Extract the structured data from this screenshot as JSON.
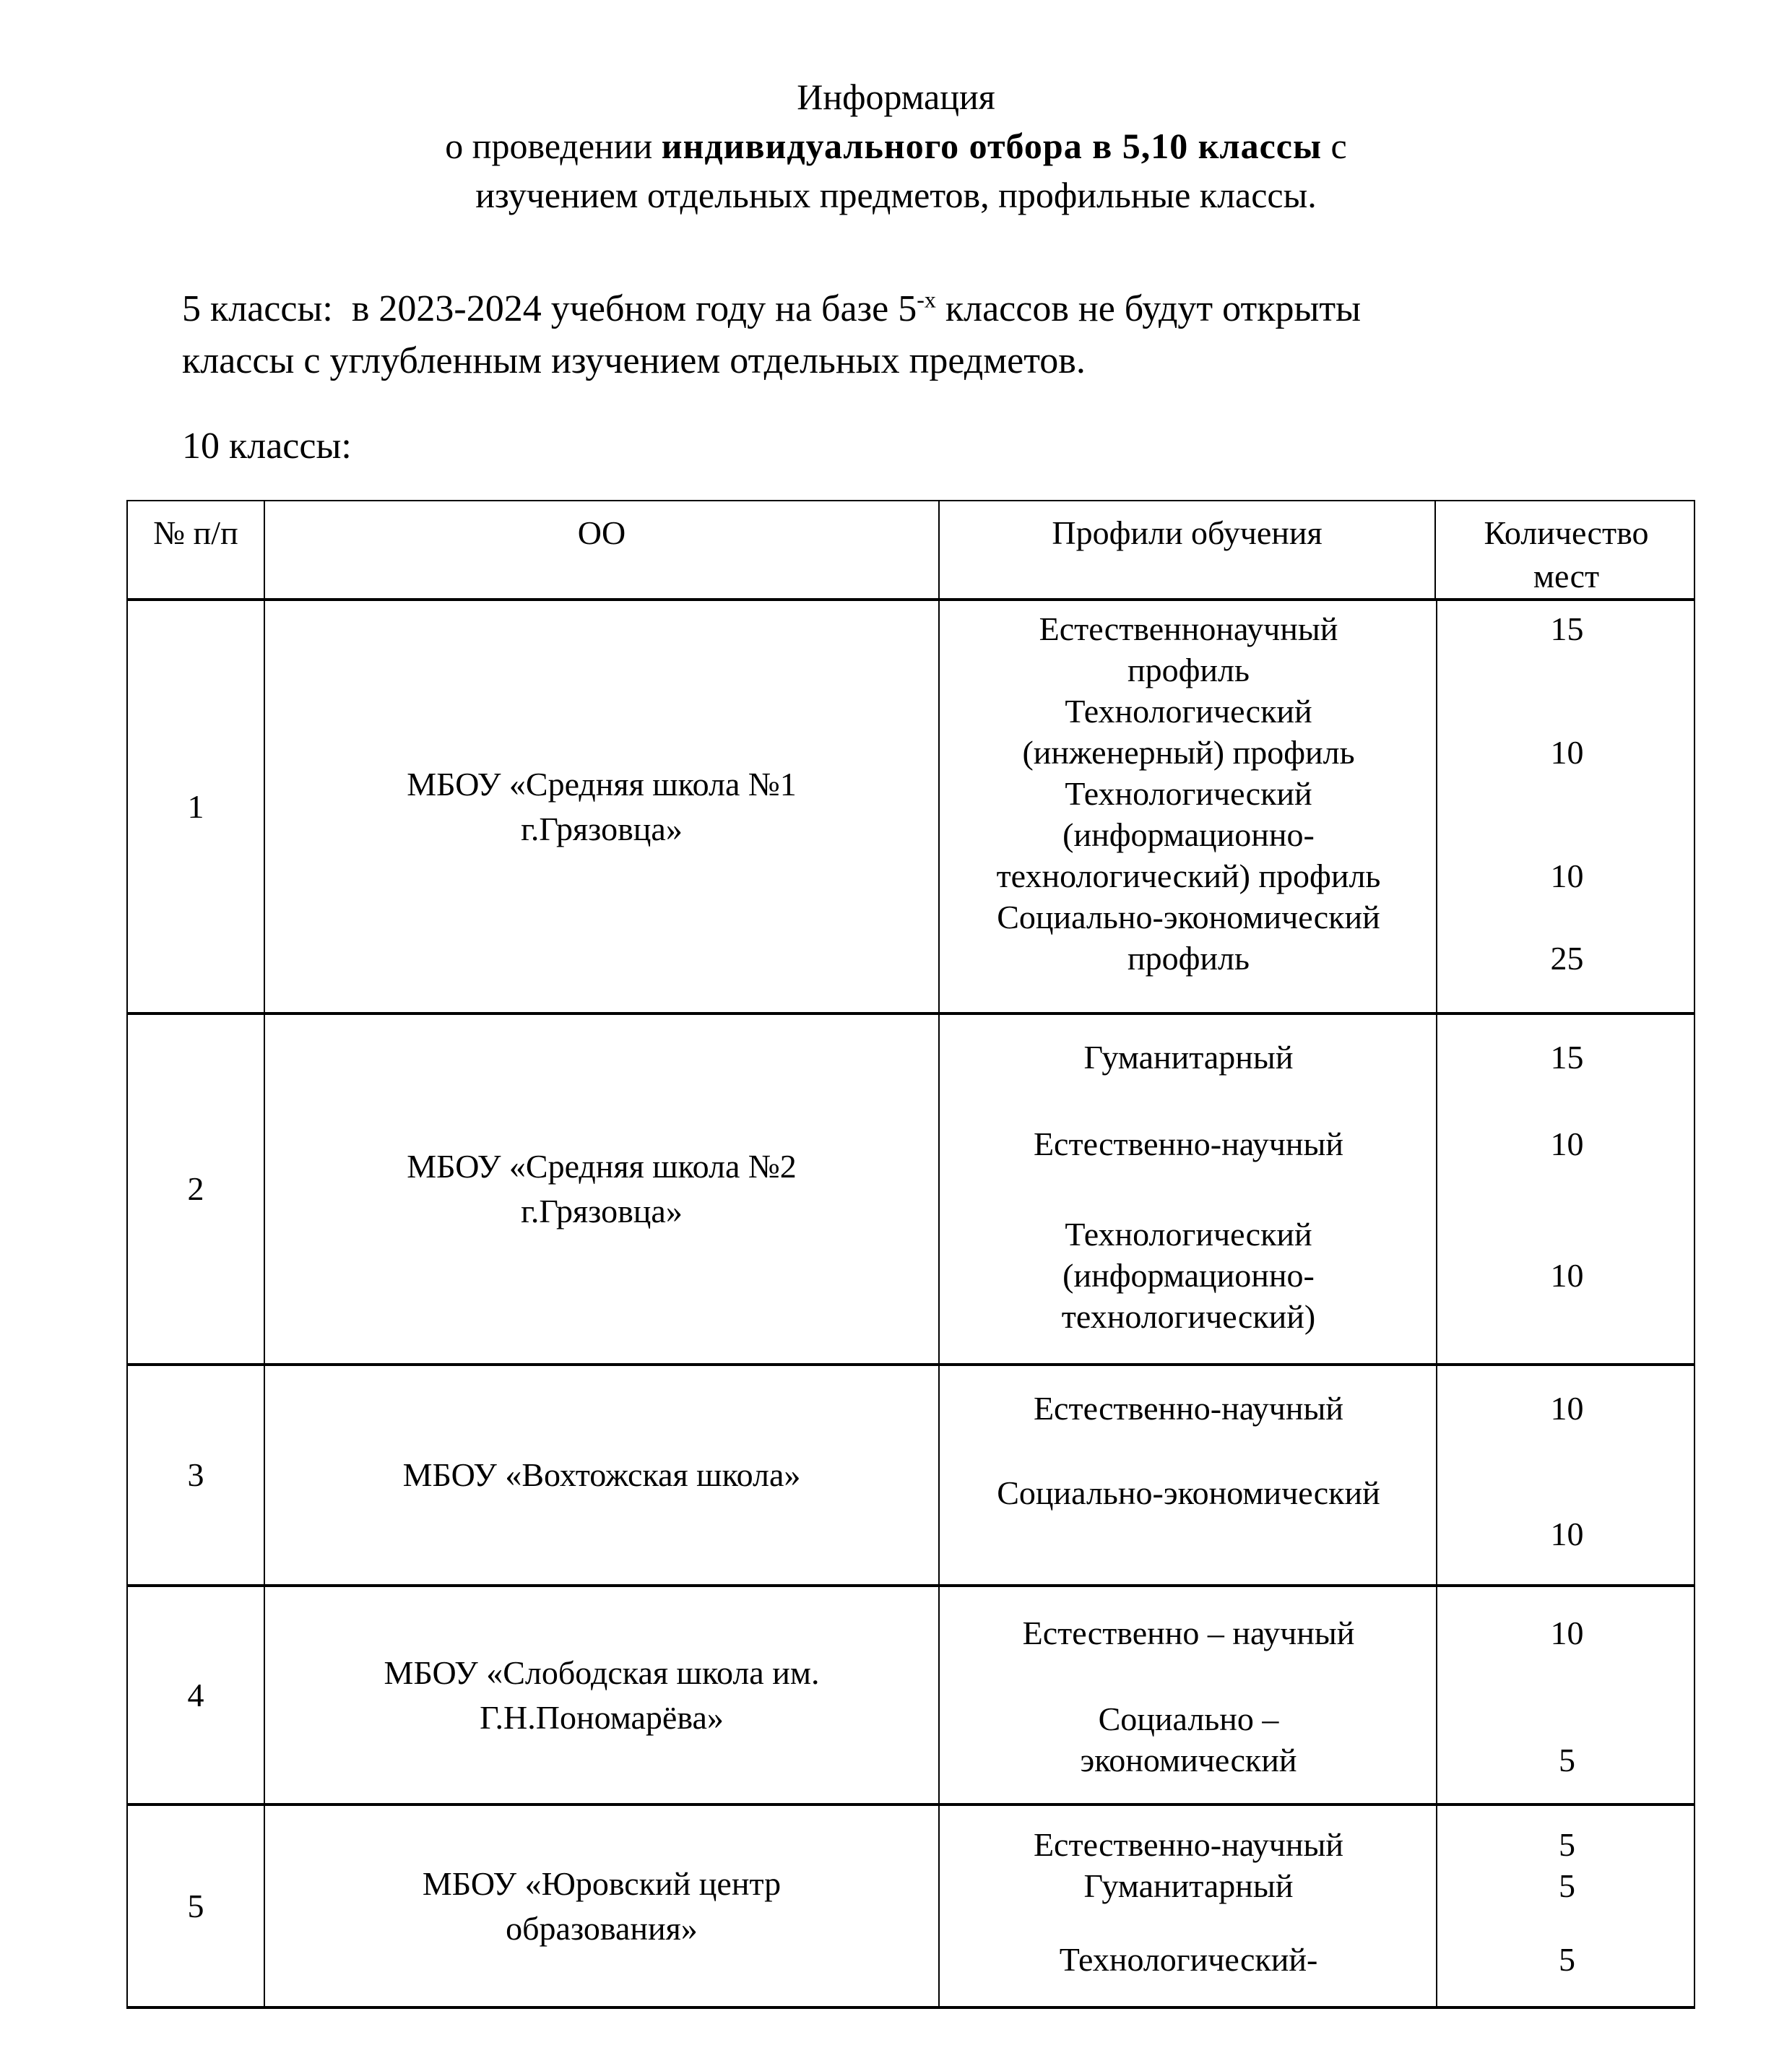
{
  "document": {
    "title": {
      "line1": "Информация",
      "line2_pre": "о проведении ",
      "line2_bold": "индивидуального отбора в 5,10 классы",
      "line2_post": " с",
      "line3": "изучением отдельных предметов, профильные классы."
    },
    "intro": {
      "line1_pre": "5 классы:  в 2023-2024 учебном году на базе 5",
      "line1_sup": "-х",
      "line1_post": " классов не будут открыты",
      "line2": "классы с углубленным изучением отдельных предметов."
    },
    "section_label": "10 классы:"
  },
  "table": {
    "headers": {
      "num": "№ п/п",
      "school": "ОО",
      "profiles": "Профили обучения",
      "places": "Количество\nмест"
    },
    "rows": [
      {
        "num": "1",
        "school": "МБОУ «Средняя школа №1\nг.Грязовца»",
        "entries": [
          {
            "profile": "Естественнонаучный\nпрофиль",
            "places": "15"
          },
          {
            "profile": "Технологический\n(инженерный) профиль",
            "places": "10"
          },
          {
            "profile": "Технологический\n(информационно-\nтехнологический) профиль",
            "places": "10"
          },
          {
            "profile": "Социально-экономический\nпрофиль",
            "places": "25"
          }
        ]
      },
      {
        "num": "2",
        "school": "МБОУ «Средняя школа №2\nг.Грязовца»",
        "entries": [
          {
            "profile": "Гуманитарный",
            "places": "15"
          },
          {
            "profile": "Естественно-научный",
            "places": "10"
          },
          {
            "profile": "Технологический\n(информационно-\nтехнологический)",
            "places": "10"
          }
        ]
      },
      {
        "num": "3",
        "school": "МБОУ «Вохтожская школа»",
        "entries": [
          {
            "profile": "Естественно-научный",
            "places": "10"
          },
          {
            "profile": "Социально-экономический",
            "places": "10"
          }
        ]
      },
      {
        "num": "4",
        "school": "МБОУ «Слободская школа им.\nГ.Н.Пономарёва»",
        "entries": [
          {
            "profile": "Естественно – научный",
            "places": "10"
          },
          {
            "profile": "Социально –\nэкономический",
            "places": "5"
          }
        ]
      },
      {
        "num": "5",
        "school": "МБОУ «Юровский центр\nобразования»",
        "entries": [
          {
            "profile": "Естественно-научный",
            "places": "5"
          },
          {
            "profile": "Гуманитарный",
            "places": "5"
          },
          {
            "profile": "Технологический-",
            "places": "5"
          }
        ]
      }
    ]
  }
}
